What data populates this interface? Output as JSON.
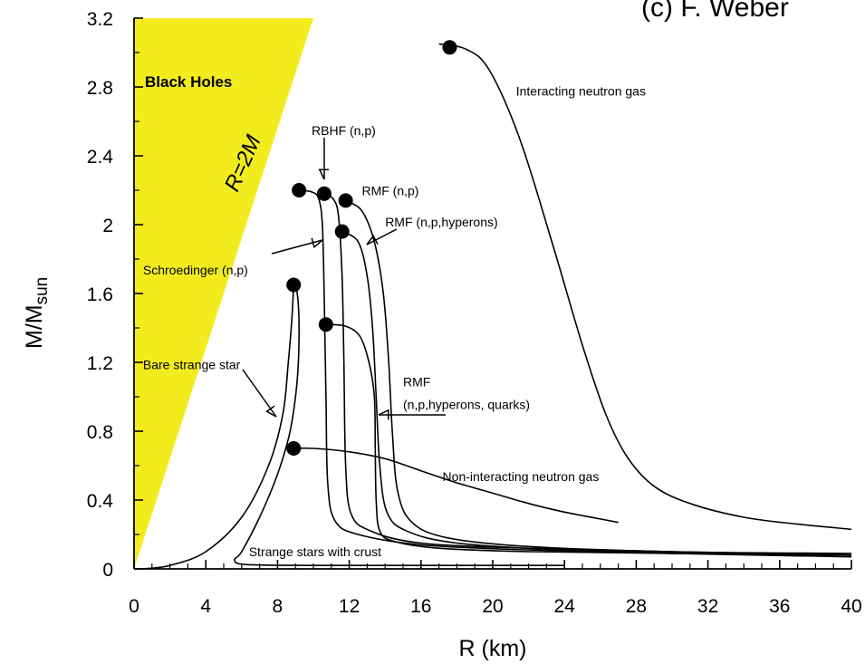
{
  "credit": "(c) F. Weber",
  "chart_data": {
    "type": "line",
    "xlabel": "R  (km)",
    "ylabel": "M/M",
    "ylabel_sub": "sun",
    "xlim": [
      0,
      40
    ],
    "ylim": [
      0,
      3.2
    ],
    "xticks": [
      0,
      4,
      8,
      12,
      16,
      20,
      24,
      28,
      32,
      36,
      40
    ],
    "yticks": [
      0,
      0.4,
      0.8,
      1.2,
      1.6,
      2,
      2.4,
      2.8,
      3.2
    ],
    "ytick_labels": [
      "0",
      "0.4",
      "0.8",
      "1.2",
      "1.6",
      "2",
      "2.4",
      "2.8",
      "3.2"
    ],
    "grid": false,
    "colors": {
      "black_hole_region": "#f2ec1f",
      "curves": "#000000"
    },
    "region": {
      "label": "Black Holes",
      "boundary_label": "R=2M",
      "polygon_x": [
        0,
        0,
        10,
        0
      ],
      "polygon_y": [
        0,
        3.2,
        3.2,
        0
      ]
    },
    "series": [
      {
        "label": "Interacting neutron gas",
        "max_mass_point": [
          17.6,
          3.03
        ],
        "x": [
          17,
          18.5,
          19.8,
          21.5,
          23.3,
          25,
          26.3,
          27.5,
          29,
          31,
          34,
          37,
          40
        ],
        "y": [
          3.05,
          3.02,
          2.9,
          2.5,
          1.9,
          1.3,
          0.9,
          0.65,
          0.48,
          0.38,
          0.3,
          0.26,
          0.23
        ]
      },
      {
        "label": "Schroedinger (n,p)",
        "max_mass_point": [
          9.2,
          2.2
        ],
        "x": [
          9.2,
          9.9,
          10.3,
          10.5,
          10.6,
          10.7,
          10.8,
          11.2,
          12.5,
          16,
          22,
          30,
          40
        ],
        "y": [
          2.2,
          2.19,
          2.15,
          2.0,
          1.6,
          1.0,
          0.5,
          0.28,
          0.2,
          0.14,
          0.11,
          0.09,
          0.07
        ]
      },
      {
        "label": "RBHF (n,p)",
        "max_mass_point": [
          10.6,
          2.18
        ],
        "x": [
          10.6,
          11.1,
          11.4,
          11.6,
          11.7,
          11.8,
          12.1,
          13.2,
          16,
          22,
          30,
          40
        ],
        "y": [
          2.18,
          2.15,
          2.05,
          1.7,
          1.2,
          0.6,
          0.32,
          0.22,
          0.15,
          0.12,
          0.1,
          0.08
        ]
      },
      {
        "label": "RMF (n,p)",
        "max_mass_point": [
          11.8,
          2.14
        ],
        "x": [
          11.8,
          12.7,
          13.4,
          13.9,
          14.2,
          14.4,
          14.7,
          15.5,
          17.5,
          22,
          30,
          40
        ],
        "y": [
          2.14,
          2.08,
          1.9,
          1.6,
          1.2,
          0.8,
          0.45,
          0.27,
          0.18,
          0.13,
          0.1,
          0.09
        ]
      },
      {
        "label": "RMF (n,p,hyperons)",
        "max_mass_point": [
          11.6,
          1.96
        ],
        "x": [
          11.6,
          12.5,
          13.0,
          13.3,
          13.5,
          13.7,
          14.1,
          15.2,
          18,
          24,
          32,
          40
        ],
        "y": [
          1.96,
          1.9,
          1.7,
          1.4,
          1.0,
          0.6,
          0.33,
          0.22,
          0.15,
          0.11,
          0.09,
          0.08
        ]
      },
      {
        "label": "RMF (n,p,hyperons, quarks)",
        "max_mass_point": [
          10.7,
          1.42
        ],
        "x": [
          10.7,
          11.8,
          12.6,
          13.1,
          13.4,
          13.45,
          13.5,
          13.7,
          14.5,
          17,
          22,
          30,
          40
        ],
        "y": [
          1.42,
          1.41,
          1.35,
          1.2,
          1.0,
          0.7,
          0.4,
          0.22,
          0.16,
          0.12,
          0.1,
          0.09,
          0.08
        ]
      },
      {
        "label": "Non-interacting neutron gas",
        "max_mass_point": [
          8.9,
          0.7
        ],
        "x": [
          8.9,
          10,
          12,
          14,
          16,
          18,
          20,
          22,
          24,
          26,
          27
        ],
        "y": [
          0.7,
          0.7,
          0.68,
          0.64,
          0.57,
          0.5,
          0.44,
          0.38,
          0.33,
          0.29,
          0.27
        ]
      },
      {
        "label": "Bare strange star",
        "max_mass_point": [
          8.9,
          1.65
        ],
        "x": [
          0.5,
          2,
          4,
          6,
          7.5,
          8.3,
          8.6,
          8.8,
          8.9
        ],
        "y": [
          0,
          0.02,
          0.1,
          0.3,
          0.6,
          0.9,
          1.2,
          1.45,
          1.65
        ]
      },
      {
        "label": "Strange stars with crust",
        "x": [
          8.9,
          9.1,
          9.2,
          9.1,
          8.7,
          8.0,
          7.0,
          6.0,
          5.6,
          6.3,
          10,
          16,
          24
        ],
        "y": [
          1.65,
          1.6,
          1.4,
          1.1,
          0.8,
          0.55,
          0.3,
          0.1,
          0.05,
          0.025,
          0.02,
          0.02,
          0.02
        ]
      }
    ],
    "annotations": [
      {
        "text": "Interacting neutron gas",
        "x": 21.3,
        "y": 2.75
      },
      {
        "text": "RBHF (n,p)",
        "x": 9.9,
        "y": 2.52
      },
      {
        "text": "RMF (n,p)",
        "x": 12.7,
        "y": 2.17
      },
      {
        "text": "RMF (n,p,hyperons)",
        "x": 14.0,
        "y": 1.99
      },
      {
        "text": "Schroedinger (n,p)",
        "x": 0.5,
        "y": 1.71
      },
      {
        "text": "Bare strange star",
        "x": 0.5,
        "y": 1.16
      },
      {
        "text": "RMF",
        "x": 15.0,
        "y": 1.06
      },
      {
        "text": "(n,p,hyperons, quarks)",
        "x": 15.0,
        "y": 0.93
      },
      {
        "text": "Non-interacting neutron gas",
        "x": 17.2,
        "y": 0.51
      },
      {
        "text": "Strange stars with crust",
        "x": 6.4,
        "y": 0.075
      }
    ]
  }
}
